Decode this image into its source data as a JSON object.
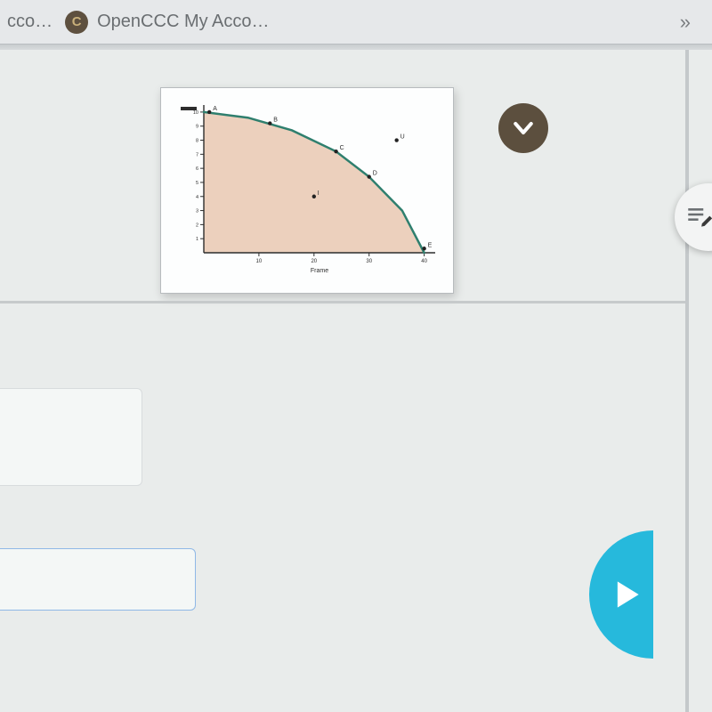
{
  "tabs": {
    "fragment_left": "cco…",
    "item": {
      "favicon_letter": "C",
      "label": "OpenCCC My Acco…"
    },
    "overflow": "»"
  },
  "colors": {
    "tabbar_bg": "#e6e8ea",
    "surface_bg": "#e9eceb",
    "collapse_bg": "#5c4f3e",
    "play_bg": "#26b9dc",
    "edit_bg": "#f3f4f4",
    "chart_card_bg": "#fdfefe",
    "chart_card_border": "#b7bbbe"
  },
  "chart": {
    "type": "ppf-curve",
    "x_label": "Frame",
    "y_label": "",
    "curve_color": "#2f7f6e",
    "curve_width": 2.5,
    "fill_color": "#ecd0bd",
    "axis_color": "#2d2d2d",
    "bg": "#fdfefe",
    "x_ticks": [
      10,
      20,
      30,
      40
    ],
    "y_ticks": [
      1,
      2,
      3,
      4,
      5,
      6,
      7,
      8,
      9,
      10
    ],
    "xlim": [
      0,
      42
    ],
    "ylim": [
      0,
      10.5
    ],
    "curve_points": [
      [
        0,
        10
      ],
      [
        8,
        9.6
      ],
      [
        16,
        8.7
      ],
      [
        24,
        7.2
      ],
      [
        30,
        5.4
      ],
      [
        36,
        3.0
      ],
      [
        40,
        0
      ]
    ],
    "markers": [
      {
        "x": 1,
        "y": 10,
        "label": "A"
      },
      {
        "x": 12,
        "y": 9.2,
        "label": "B"
      },
      {
        "x": 24,
        "y": 7.2,
        "label": "C"
      },
      {
        "x": 30,
        "y": 5.4,
        "label": "D"
      },
      {
        "x": 40,
        "y": 0.3,
        "label": "E"
      },
      {
        "x": 20,
        "y": 4.0,
        "label": "I"
      },
      {
        "x": 35,
        "y": 8.0,
        "label": "U"
      }
    ],
    "marker_color": "#222222",
    "label_fontsize": 7
  }
}
